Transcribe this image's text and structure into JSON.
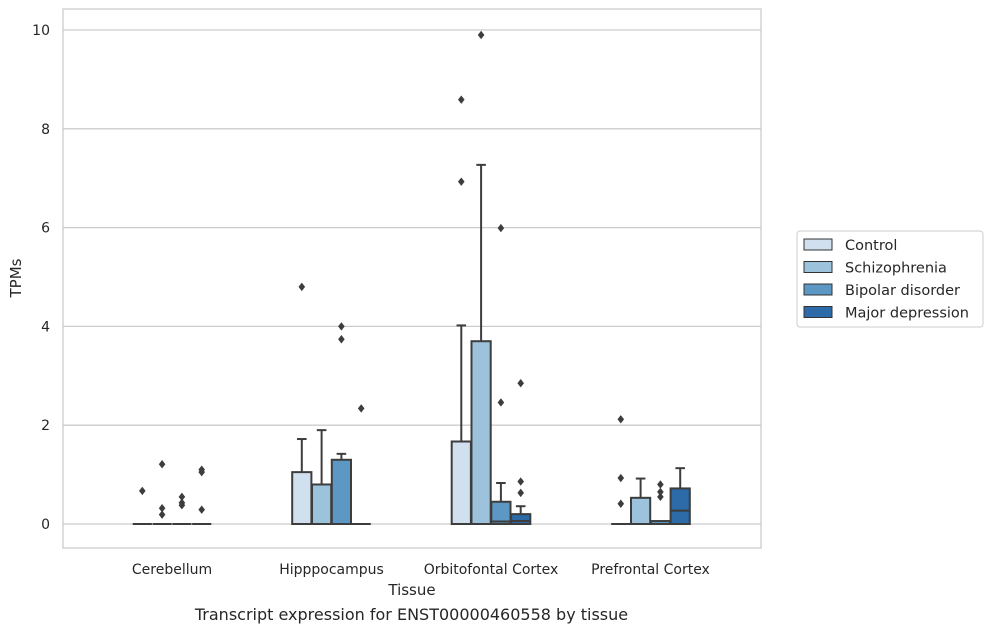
{
  "caption": "Transcript expression for ENST00000460558 by tissue",
  "chart_data": {
    "type": "box",
    "title": "",
    "xlabel": "Tissue",
    "ylabel": "TPMs",
    "ylim": [
      -0.45,
      10.4
    ],
    "yticks": [
      0,
      2,
      4,
      6,
      8,
      10
    ],
    "grid": "horizontal",
    "legend_position": "right",
    "categories": [
      "Cerebellum",
      "Hipppocampus",
      "Orbitofontal Cortex",
      "Prefrontal Cortex"
    ],
    "series": [
      {
        "name": "Control",
        "color": "#d0e0ef",
        "boxes": [
          {
            "q1": 0,
            "median": 0,
            "q3": 0,
            "whisker_low": 0,
            "whisker_high": 0,
            "outliers": [
              0.67
            ]
          },
          {
            "q1": 0,
            "median": 0,
            "q3": 1.05,
            "whisker_low": 0,
            "whisker_high": 1.72,
            "outliers": [
              4.8
            ]
          },
          {
            "q1": 0,
            "median": 0,
            "q3": 1.67,
            "whisker_low": 0,
            "whisker_high": 4.02,
            "outliers": [
              6.93,
              8.59
            ]
          },
          {
            "q1": 0,
            "median": 0,
            "q3": 0,
            "whisker_low": 0,
            "whisker_high": 0,
            "outliers": [
              0.41,
              0.93,
              2.12
            ]
          }
        ]
      },
      {
        "name": "Schizophrenia",
        "color": "#9dc3dc",
        "boxes": [
          {
            "q1": 0,
            "median": 0,
            "q3": 0,
            "whisker_low": 0,
            "whisker_high": 0,
            "outliers": [
              0.19,
              0.32,
              1.21
            ]
          },
          {
            "q1": 0,
            "median": 0,
            "q3": 0.8,
            "whisker_low": 0,
            "whisker_high": 1.9,
            "outliers": []
          },
          {
            "q1": 0,
            "median": 0,
            "q3": 3.7,
            "whisker_low": 0,
            "whisker_high": 7.27,
            "outliers": [
              9.9
            ]
          },
          {
            "q1": 0,
            "median": 0,
            "q3": 0.53,
            "whisker_low": 0,
            "whisker_high": 0.92,
            "outliers": []
          }
        ]
      },
      {
        "name": "Bipolar disorder",
        "color": "#5c98c3",
        "boxes": [
          {
            "q1": 0,
            "median": 0,
            "q3": 0,
            "whisker_low": 0,
            "whisker_high": 0,
            "outliers": [
              0.38,
              0.43,
              0.55
            ]
          },
          {
            "q1": 0,
            "median": 0,
            "q3": 1.3,
            "whisker_low": 0,
            "whisker_high": 1.42,
            "outliers": [
              3.74,
              4.0
            ]
          },
          {
            "q1": 0,
            "median": 0.05,
            "q3": 0.45,
            "whisker_low": 0,
            "whisker_high": 0.83,
            "outliers": [
              2.46,
              5.99
            ]
          },
          {
            "q1": 0,
            "median": 0,
            "q3": 0.06,
            "whisker_low": 0,
            "whisker_high": 0.06,
            "outliers": [
              0.55,
              0.65,
              0.8
            ]
          }
        ]
      },
      {
        "name": "Major depression",
        "color": "#2c6aa8",
        "boxes": [
          {
            "q1": 0,
            "median": 0,
            "q3": 0,
            "whisker_low": 0,
            "whisker_high": 0,
            "outliers": [
              0.29,
              1.05,
              1.1
            ]
          },
          {
            "q1": 0,
            "median": 0,
            "q3": 0,
            "whisker_low": 0,
            "whisker_high": 0,
            "outliers": [
              2.34
            ]
          },
          {
            "q1": 0,
            "median": 0.06,
            "q3": 0.2,
            "whisker_low": 0,
            "whisker_high": 0.36,
            "outliers": [
              0.63,
              0.86,
              2.85
            ]
          },
          {
            "q1": 0,
            "median": 0.27,
            "q3": 0.72,
            "whisker_low": 0,
            "whisker_high": 1.13,
            "outliers": []
          }
        ]
      }
    ]
  }
}
